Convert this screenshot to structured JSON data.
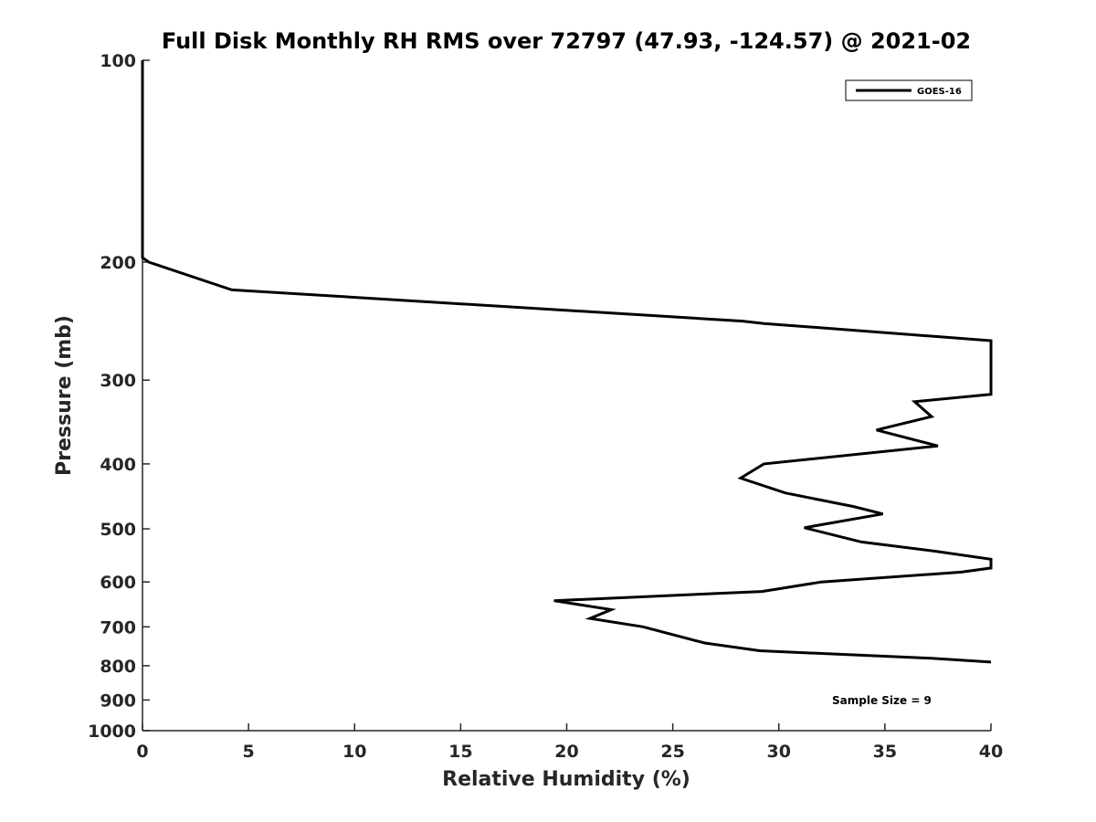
{
  "chart_data": {
    "type": "line",
    "title": "Full Disk Monthly RH RMS over 72797 (47.93, -124.57) @ 2021-02",
    "xlabel": "Relative Humidity (%)",
    "ylabel": "Pressure (mb)",
    "xlim": [
      0,
      40
    ],
    "ylim": [
      100,
      1000
    ],
    "y_scale": "log",
    "y_reversed": true,
    "x_ticks": [
      0,
      5,
      10,
      15,
      20,
      25,
      30,
      35,
      40
    ],
    "x_tick_labels": [
      "0",
      "5",
      "10",
      "15",
      "20",
      "25",
      "30",
      "35",
      "40"
    ],
    "y_ticks": [
      100,
      200,
      300,
      400,
      500,
      600,
      700,
      800,
      900,
      1000
    ],
    "y_tick_labels": [
      "100",
      "200",
      "300",
      "400",
      "500",
      "600",
      "700",
      "800",
      "900",
      "1000"
    ],
    "grid": false,
    "legend_position": "top-right",
    "annotation": "Sample Size = 9",
    "series": [
      {
        "name": "GOES-16",
        "color": "#000000",
        "points": [
          [
            0,
            100
          ],
          [
            0,
            150
          ],
          [
            0,
            197
          ],
          [
            0.3,
            200
          ],
          [
            4.2,
            220
          ],
          [
            28.3,
            245
          ],
          [
            29.3,
            247
          ],
          [
            40,
            262
          ],
          [
            40,
            315
          ],
          [
            36.4,
            323
          ],
          [
            37.2,
            340
          ],
          [
            34.6,
            356
          ],
          [
            37.5,
            376
          ],
          [
            29.3,
            400
          ],
          [
            28.2,
            420
          ],
          [
            30.3,
            442
          ],
          [
            33.5,
            463
          ],
          [
            34.9,
            475
          ],
          [
            31.2,
            498
          ],
          [
            33.9,
            523
          ],
          [
            37.4,
            540
          ],
          [
            40,
            555
          ],
          [
            40,
            572
          ],
          [
            38.6,
            580
          ],
          [
            32,
            600
          ],
          [
            29.2,
            620
          ],
          [
            19.4,
            640
          ],
          [
            22.1,
            660
          ],
          [
            21.1,
            680
          ],
          [
            23.6,
            700
          ],
          [
            26.5,
            740
          ],
          [
            29.1,
            760
          ],
          [
            37.2,
            780
          ],
          [
            40,
            790
          ]
        ]
      }
    ]
  },
  "legend": {
    "label": "GOES-16"
  }
}
